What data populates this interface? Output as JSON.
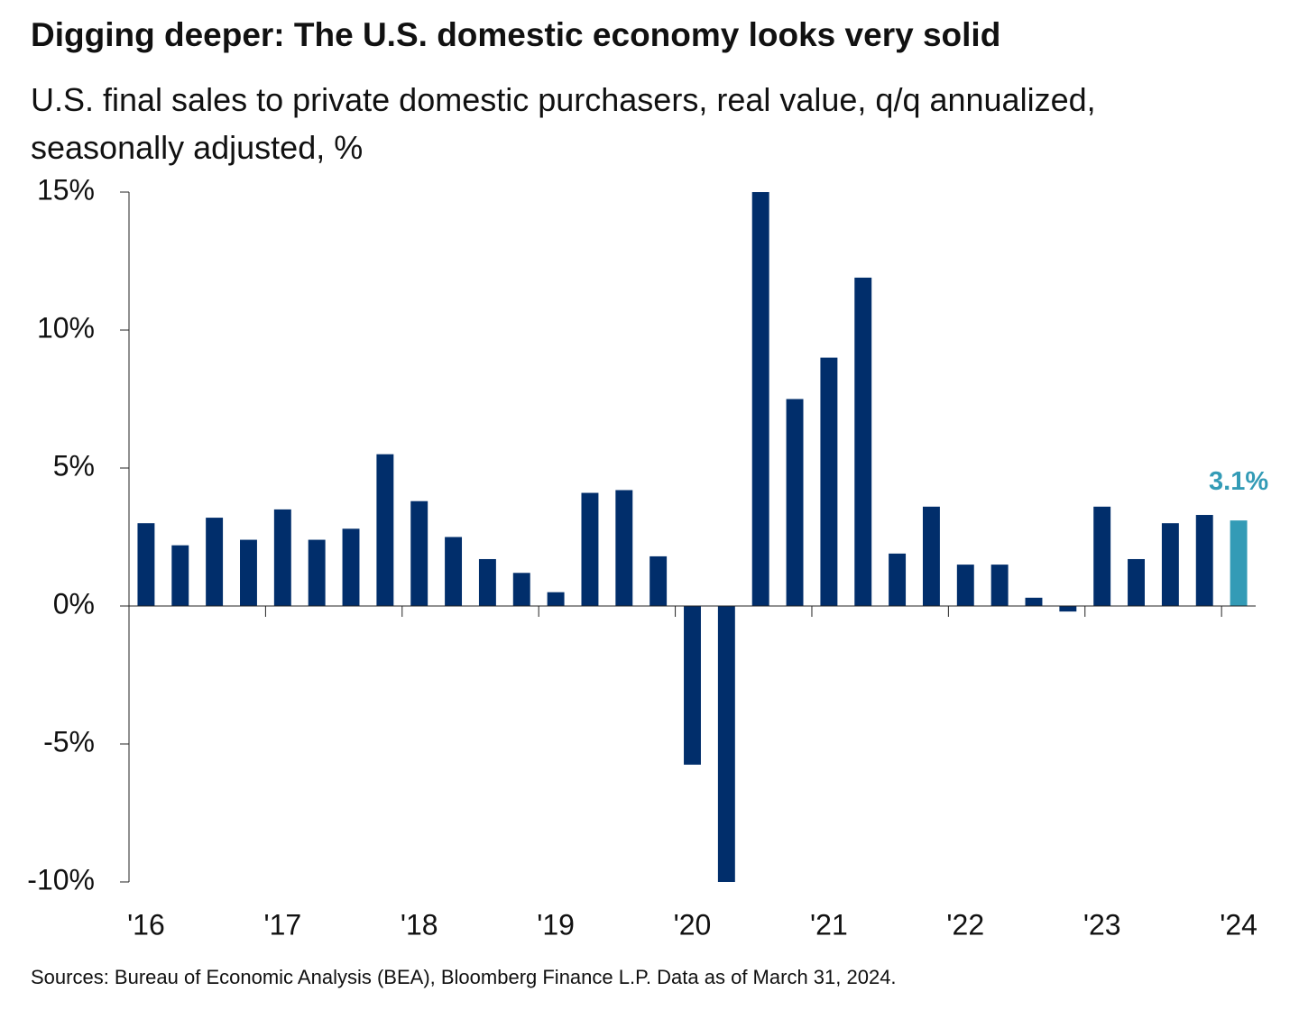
{
  "chart_data": {
    "type": "bar",
    "title": "Digging deeper: The U.S. domestic economy looks very solid",
    "subtitle": "U.S. final sales to private domestic purchasers, real value, q/q annualized, seasonally adjusted, %",
    "source": "Sources: Bureau of Economic Analysis (BEA), Bloomberg Finance L.P. Data as of March 31, 2024.",
    "categories": [
      "'16",
      null,
      null,
      null,
      "'17",
      null,
      null,
      null,
      "'18",
      null,
      null,
      null,
      "'19",
      null,
      null,
      null,
      "'20",
      null,
      null,
      null,
      "'21",
      null,
      null,
      null,
      "'22",
      null,
      null,
      null,
      "'23",
      null,
      null,
      null,
      "'24"
    ],
    "values": [
      3.0,
      2.2,
      3.2,
      2.4,
      3.5,
      2.4,
      2.8,
      5.5,
      3.8,
      2.5,
      1.7,
      1.2,
      0.5,
      4.1,
      4.2,
      1.8,
      -5.75,
      -10.0,
      15.0,
      7.5,
      9.0,
      11.9,
      1.9,
      3.6,
      1.5,
      1.5,
      0.3,
      -0.2,
      3.6,
      1.7,
      3.0,
      3.3,
      3.1
    ],
    "value_labels": [
      null,
      null,
      null,
      null,
      null,
      null,
      null,
      null,
      null,
      null,
      null,
      null,
      null,
      null,
      null,
      null,
      null,
      null,
      null,
      null,
      null,
      null,
      null,
      null,
      null,
      null,
      null,
      null,
      null,
      null,
      null,
      null,
      "3.1%"
    ],
    "colors": [
      "#012e6b",
      "#012e6b",
      "#012e6b",
      "#012e6b",
      "#012e6b",
      "#012e6b",
      "#012e6b",
      "#012e6b",
      "#012e6b",
      "#012e6b",
      "#012e6b",
      "#012e6b",
      "#012e6b",
      "#012e6b",
      "#012e6b",
      "#012e6b",
      "#012e6b",
      "#012e6b",
      "#012e6b",
      "#012e6b",
      "#012e6b",
      "#012e6b",
      "#012e6b",
      "#012e6b",
      "#012e6b",
      "#012e6b",
      "#012e6b",
      "#012e6b",
      "#012e6b",
      "#012e6b",
      "#012e6b",
      "#012e6b",
      "#339bb6"
    ],
    "label_color": "#339bb6",
    "ylim": [
      -10,
      15
    ],
    "yticks": [
      {
        "value": -10,
        "label": "-10%"
      },
      {
        "value": -5,
        "label": "-5%"
      },
      {
        "value": 0,
        "label": "0%"
      },
      {
        "value": 5,
        "label": "5%"
      },
      {
        "value": 10,
        "label": "10%"
      },
      {
        "value": 15,
        "label": "15%"
      }
    ],
    "grid": false
  }
}
